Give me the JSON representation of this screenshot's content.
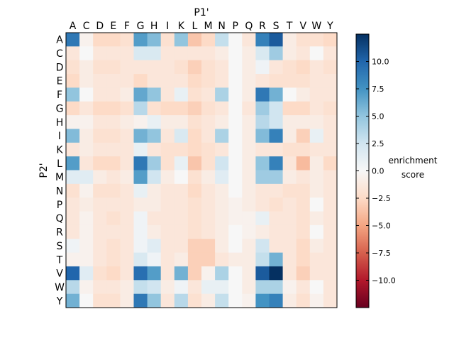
{
  "chart_data": {
    "type": "heatmap",
    "xlabel": "P1'",
    "ylabel": "P2'",
    "x_categories": [
      "A",
      "C",
      "D",
      "E",
      "F",
      "G",
      "H",
      "I",
      "K",
      "L",
      "M",
      "N",
      "P",
      "Q",
      "R",
      "S",
      "T",
      "V",
      "W",
      "Y"
    ],
    "y_categories": [
      "A",
      "C",
      "D",
      "E",
      "F",
      "G",
      "H",
      "I",
      "K",
      "L",
      "M",
      "N",
      "P",
      "Q",
      "R",
      "S",
      "T",
      "V",
      "W",
      "Y"
    ],
    "colorbar": {
      "label_line1": "enrichment",
      "label_line2": "score",
      "vmin": -12.5,
      "vmax": 12.5,
      "ticks": [
        10.0,
        7.5,
        5.0,
        2.5,
        0.0,
        -2.5,
        -5.0,
        -7.5,
        -10.0
      ],
      "tick_labels": [
        "10.0",
        "7.5",
        "5.0",
        "2.5",
        "0.0",
        "−2.5",
        "−5.0",
        "−7.5",
        "−10.0"
      ],
      "colormap": "RdBu"
    },
    "values": [
      [
        9.0,
        -0.5,
        -2.5,
        -2.5,
        -2.0,
        7.0,
        5.5,
        -2.0,
        5.0,
        -3.5,
        -2.5,
        3.0,
        0.0,
        -1.5,
        8.5,
        10.5,
        -1.0,
        -2.0,
        -2.0,
        -2.5
      ],
      [
        -1.5,
        0.0,
        -1.5,
        -1.5,
        -1.5,
        2.0,
        2.0,
        -1.5,
        -1.5,
        -1.5,
        -1.5,
        -1.0,
        0.0,
        -1.0,
        2.0,
        4.5,
        -1.0,
        -1.5,
        0.0,
        -1.5
      ],
      [
        -2.0,
        -1.0,
        -2.0,
        -2.0,
        -1.5,
        -1.5,
        -1.5,
        -1.5,
        -2.0,
        -3.0,
        -2.0,
        -1.5,
        0.0,
        -1.0,
        0.5,
        -1.5,
        -2.0,
        -2.5,
        -1.5,
        -2.0
      ],
      [
        -2.5,
        -1.0,
        -1.5,
        -1.5,
        -1.5,
        -2.5,
        -1.5,
        -1.5,
        -1.5,
        -2.5,
        -2.0,
        -1.5,
        0.0,
        -1.0,
        -1.5,
        -2.0,
        -2.0,
        -2.0,
        -1.5,
        -1.5
      ],
      [
        5.0,
        0.0,
        -1.5,
        -1.5,
        -1.0,
        6.5,
        5.0,
        -1.5,
        1.0,
        -2.0,
        -1.5,
        4.0,
        0.0,
        -1.0,
        9.0,
        6.0,
        0.0,
        -1.0,
        -1.5,
        -1.5
      ],
      [
        -2.5,
        -1.5,
        -2.5,
        -2.5,
        -2.0,
        3.5,
        -2.0,
        -2.5,
        -2.5,
        -3.0,
        -2.0,
        -1.5,
        0.0,
        -1.5,
        4.5,
        2.5,
        -2.5,
        -2.5,
        -1.5,
        -2.0
      ],
      [
        -0.5,
        -0.5,
        -1.5,
        -1.5,
        -1.0,
        -0.5,
        1.0,
        -1.0,
        -1.0,
        -2.0,
        -1.5,
        -1.0,
        0.0,
        -1.0,
        3.5,
        2.5,
        -1.0,
        -1.0,
        -1.0,
        -1.5
      ],
      [
        5.5,
        -1.0,
        -2.0,
        -2.0,
        -1.5,
        6.0,
        5.0,
        -1.5,
        2.0,
        -2.5,
        -1.5,
        4.0,
        0.0,
        -1.0,
        5.5,
        8.5,
        -1.0,
        -3.0,
        1.0,
        -1.5
      ],
      [
        -1.5,
        -1.0,
        -1.5,
        -1.5,
        -1.5,
        1.0,
        -1.5,
        -2.0,
        -2.0,
        -2.5,
        -2.0,
        -1.5,
        0.0,
        -1.0,
        -1.5,
        -1.5,
        -2.0,
        -2.0,
        -1.5,
        -1.5
      ],
      [
        7.0,
        -1.5,
        -2.5,
        -2.5,
        -1.5,
        9.0,
        4.5,
        -2.0,
        1.0,
        -3.5,
        -2.0,
        2.5,
        0.0,
        -1.0,
        5.0,
        8.5,
        -1.5,
        -4.0,
        -1.0,
        -2.5
      ],
      [
        1.5,
        1.5,
        -1.0,
        -1.5,
        -1.0,
        7.0,
        2.5,
        -1.0,
        0.0,
        -2.0,
        -1.0,
        1.5,
        0.0,
        -1.0,
        4.5,
        4.5,
        -1.0,
        -1.5,
        -1.0,
        -1.5
      ],
      [
        -2.0,
        -0.5,
        -2.0,
        -2.0,
        -1.5,
        1.0,
        -1.0,
        -1.5,
        -1.5,
        -2.5,
        -1.5,
        -1.0,
        0.0,
        -1.0,
        -1.5,
        -1.5,
        -2.0,
        -2.0,
        -1.0,
        -1.5
      ],
      [
        -1.5,
        -1.0,
        -1.5,
        -1.5,
        -1.5,
        -1.0,
        -1.0,
        -1.5,
        -1.5,
        -2.0,
        -1.5,
        -1.0,
        -0.5,
        -1.0,
        -1.5,
        -2.0,
        -1.5,
        -2.0,
        0.0,
        -1.5
      ],
      [
        -1.5,
        -0.5,
        -1.5,
        -2.0,
        -1.5,
        0.5,
        -1.5,
        -1.5,
        -1.5,
        -2.0,
        -1.5,
        -1.0,
        -0.5,
        -0.5,
        1.0,
        -1.5,
        -1.5,
        -2.0,
        -1.0,
        -1.5
      ],
      [
        -1.5,
        -0.5,
        -1.5,
        -1.5,
        -1.5,
        0.5,
        -1.0,
        -1.5,
        -1.5,
        -2.0,
        -1.5,
        -1.0,
        0.0,
        -0.5,
        -1.0,
        -1.5,
        -1.5,
        -2.0,
        0.0,
        -1.5
      ],
      [
        0.5,
        -0.5,
        -1.5,
        -2.0,
        -1.5,
        0.5,
        1.5,
        -1.5,
        -1.5,
        -3.0,
        -3.0,
        -1.0,
        0.0,
        -1.0,
        2.5,
        -1.5,
        -1.5,
        -2.5,
        -1.0,
        -1.5
      ],
      [
        -0.5,
        -0.5,
        -1.5,
        -2.0,
        -1.5,
        2.0,
        0.5,
        -1.5,
        -1.0,
        -3.0,
        -3.0,
        -1.5,
        -1.0,
        -1.0,
        3.0,
        6.0,
        -1.5,
        -2.5,
        -1.5,
        -1.5
      ],
      [
        10.0,
        1.5,
        -2.0,
        -2.5,
        -1.5,
        9.5,
        7.0,
        -1.5,
        6.0,
        -3.0,
        -0.5,
        4.0,
        0.0,
        -1.0,
        10.5,
        12.5,
        -1.5,
        -3.0,
        -1.5,
        -1.5
      ],
      [
        3.5,
        -0.5,
        -1.5,
        -1.5,
        -1.0,
        3.0,
        2.5,
        -1.0,
        0.5,
        -1.5,
        1.0,
        1.0,
        0.0,
        -1.0,
        4.0,
        4.0,
        -0.5,
        -1.5,
        0.0,
        -1.5
      ],
      [
        6.0,
        0.0,
        -2.0,
        -2.0,
        -1.0,
        9.0,
        5.0,
        -1.5,
        3.5,
        -2.0,
        -1.0,
        3.0,
        0.0,
        -0.5,
        7.5,
        8.5,
        -1.0,
        -2.0,
        -0.5,
        -1.5
      ]
    ]
  }
}
